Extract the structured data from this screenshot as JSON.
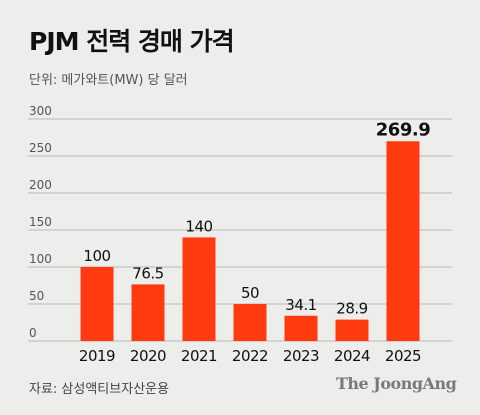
{
  "header": {
    "title": "PJM 전력 경매 가격",
    "unit": "단위: 메가와트(MW) 당 달러"
  },
  "footer": {
    "source": "자료: 삼성액티브자산운용",
    "brand": "The JoongAng"
  },
  "colors": {
    "bar": "#ff3a0f",
    "grid": "#b9b9b6",
    "background": "#ededeb"
  },
  "chart_data": {
    "type": "bar",
    "categories": [
      "2019",
      "2020",
      "2021",
      "2022",
      "2023",
      "2024",
      "2025"
    ],
    "values": [
      100,
      76.5,
      140,
      50,
      34.1,
      28.9,
      269.9
    ],
    "value_labels": [
      "100",
      "76.5",
      "140",
      "50",
      "34.1",
      "28.9",
      "269.9"
    ],
    "highlight_index": 6,
    "ylim": [
      0,
      300
    ],
    "yticks": [
      "0",
      "50",
      "100",
      "150",
      "200",
      "250",
      "300"
    ],
    "grid": true
  }
}
